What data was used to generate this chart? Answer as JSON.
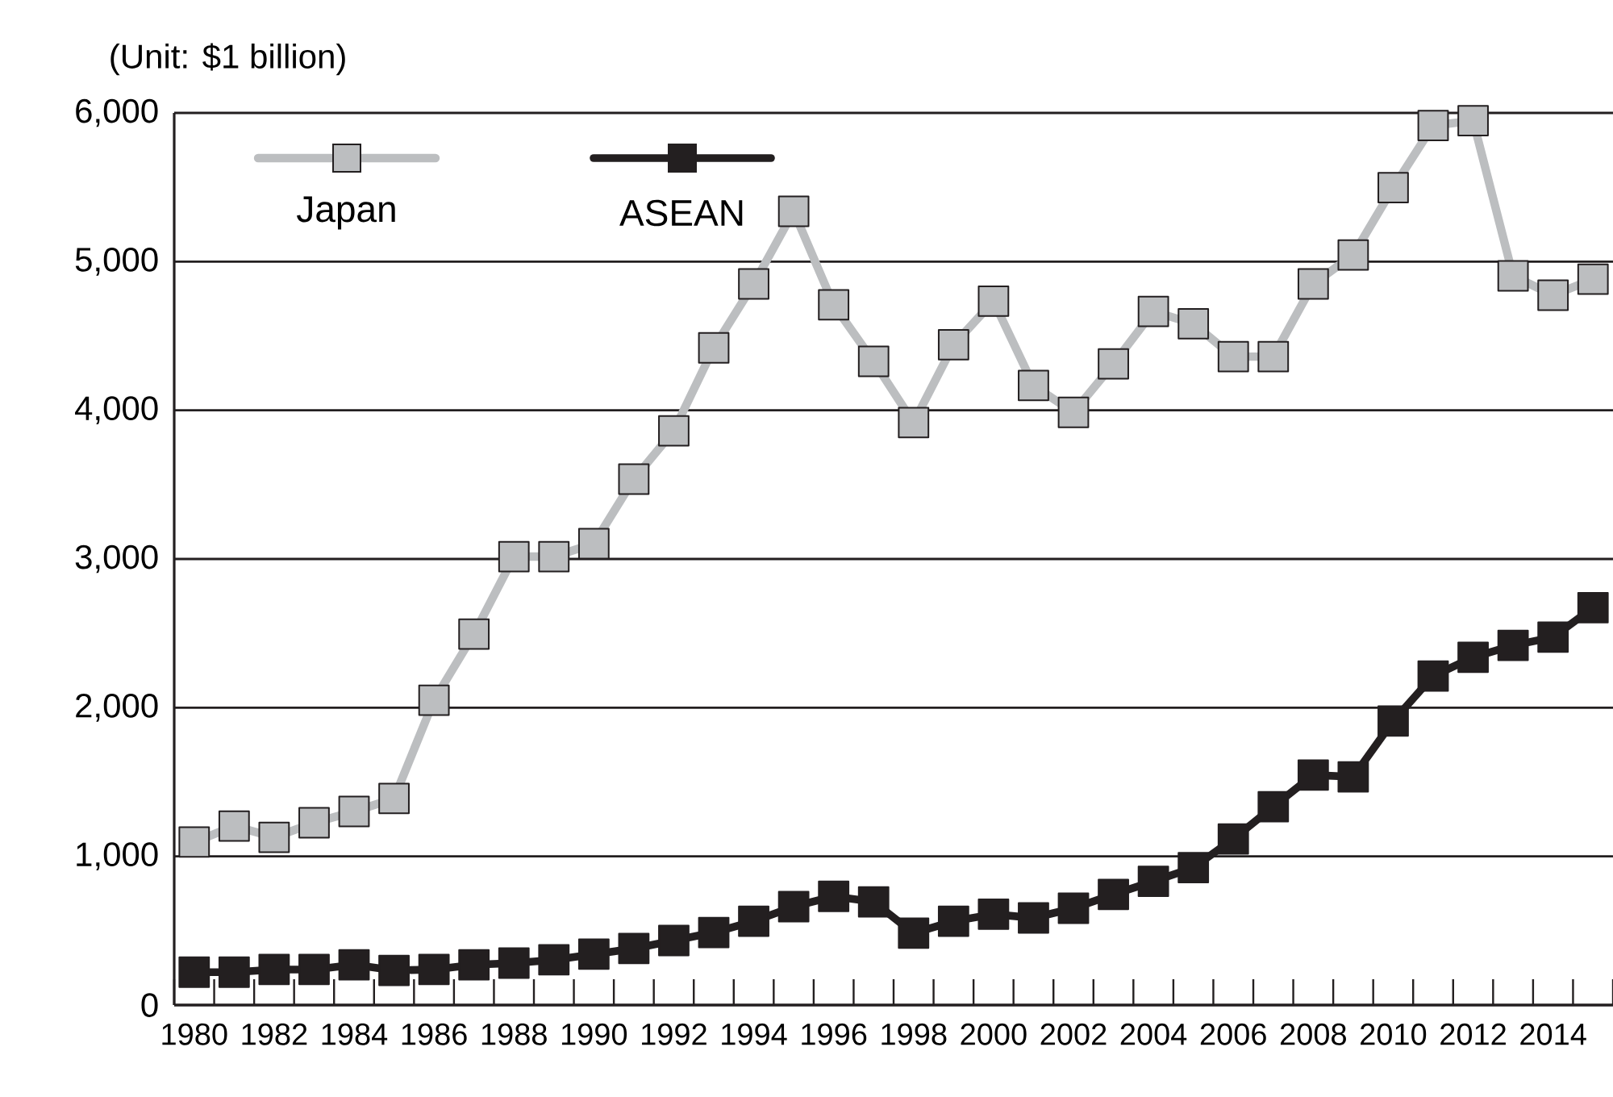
{
  "chart_data": {
    "type": "line",
    "ylabel": "(Unit: $1 billion)",
    "categories": [
      "1980",
      null,
      "1982",
      null,
      "1984",
      null,
      "1986",
      null,
      "1988",
      null,
      "1990",
      null,
      "1992",
      null,
      "1994",
      null,
      "1996",
      null,
      "1998",
      null,
      "2000",
      null,
      "2002",
      null,
      "2004",
      null,
      "2006",
      null,
      "2008",
      null,
      "2010",
      null,
      "2012",
      null,
      "2014",
      null
    ],
    "series": [
      {
        "name": "Japan",
        "color": "#bcbec0",
        "values": [
          1096,
          1204,
          1128,
          1226,
          1302,
          1389,
          2050,
          2495,
          3016,
          3016,
          3103,
          3537,
          3862,
          4420,
          4850,
          5338,
          4709,
          4329,
          3917,
          4441,
          4734,
          4167,
          3986,
          4312,
          4665,
          4582,
          4361,
          4361,
          4850,
          5045,
          5497,
          5915,
          5948,
          4904,
          4774,
          4882
        ]
      },
      {
        "name": "ASEAN",
        "color": "#231f20",
        "values": [
          221,
          221,
          239,
          239,
          271,
          233,
          239,
          271,
          282,
          304,
          342,
          380,
          434,
          488,
          564,
          662,
          731,
          694,
          483,
          564,
          611,
          586,
          651,
          744,
          832,
          924,
          1117,
          1334,
          1547,
          1535,
          1910,
          2213,
          2339,
          2419,
          2474,
          2672
        ]
      }
    ],
    "ylim": [
      0,
      6000
    ],
    "yticks": [
      0,
      {
        "value": 1000,
        "label": "1,000"
      },
      {
        "value": 2000,
        "label": "2,000"
      },
      {
        "value": 3000,
        "label": "3,000"
      },
      {
        "value": 4000,
        "label": "4,000"
      },
      {
        "value": 5000,
        "label": "5,000"
      },
      {
        "value": 6000,
        "label": "6,000"
      }
    ],
    "grid": "y",
    "legend": "top left",
    "marker": "square",
    "line_style": "solid"
  }
}
